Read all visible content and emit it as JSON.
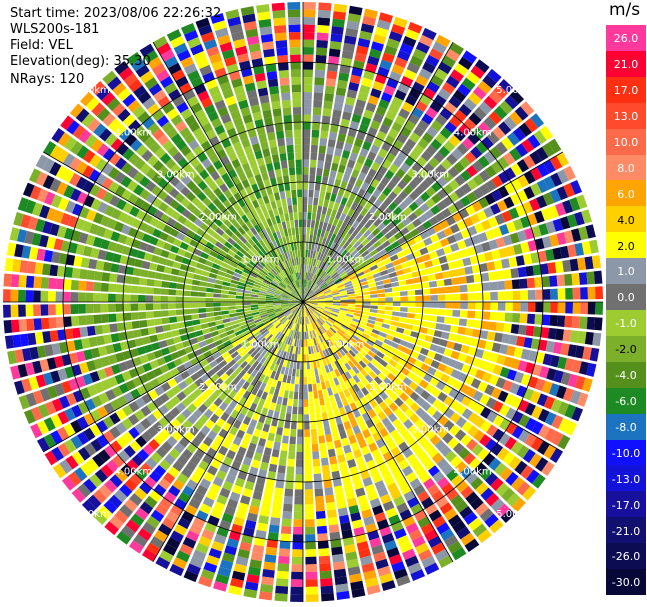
{
  "header": {
    "start_time": "Start time: 2023/08/06 22:26:32",
    "instrument": "WLS200s-181",
    "field": "Field: VEL",
    "elevation": "Elevation(deg): 35.30",
    "nrays": "NRays: 120"
  },
  "colorbar": {
    "unit": "m/s",
    "levels": [
      {
        "label": "26.0",
        "color": "#ff3a9c",
        "text": "#ffffff"
      },
      {
        "label": "21.0",
        "color": "#ff0033",
        "text": "#ffffff"
      },
      {
        "label": "17.0",
        "color": "#ff2f12",
        "text": "#ffffff"
      },
      {
        "label": "13.0",
        "color": "#ff4a2e",
        "text": "#ffffff"
      },
      {
        "label": "10.0",
        "color": "#ff6a4a",
        "text": "#ffffff"
      },
      {
        "label": "8.0",
        "color": "#ff8a66",
        "text": "#ffffff"
      },
      {
        "label": "6.0",
        "color": "#ffa400",
        "text": "#ffffff"
      },
      {
        "label": "4.0",
        "color": "#ffd000",
        "text": "#000000"
      },
      {
        "label": "2.0",
        "color": "#ffff00",
        "text": "#000000"
      },
      {
        "label": "1.0",
        "color": "#8c98a8",
        "text": "#ffffff"
      },
      {
        "label": "0.0",
        "color": "#707070",
        "text": "#ffffff"
      },
      {
        "label": "-1.0",
        "color": "#9ccc32",
        "text": "#ffffff"
      },
      {
        "label": "-2.0",
        "color": "#7cb02a",
        "text": "#000000"
      },
      {
        "label": "-4.0",
        "color": "#56901c",
        "text": "#ffffff"
      },
      {
        "label": "-6.0",
        "color": "#1e8a24",
        "text": "#ffffff"
      },
      {
        "label": "-8.0",
        "color": "#1c74c0",
        "text": "#ffffff"
      },
      {
        "label": "-10.0",
        "color": "#1010ff",
        "text": "#ffffff"
      },
      {
        "label": "-13.0",
        "color": "#1212d8",
        "text": "#ffffff"
      },
      {
        "label": "-17.0",
        "color": "#16109c",
        "text": "#ffffff"
      },
      {
        "label": "-21.0",
        "color": "#101070",
        "text": "#ffffff"
      },
      {
        "label": "-26.0",
        "color": "#0c0c52",
        "text": "#ffffff"
      },
      {
        "label": "-30.0",
        "color": "#080838",
        "text": "#ffffff"
      }
    ]
  },
  "chart_data": {
    "type": "heatmap",
    "plot_kind": "ppi-polar",
    "field": "VEL",
    "units": "m/s",
    "nrays": 120,
    "range_rings_km": [
      1.0,
      2.0,
      3.0,
      4.0,
      5.0
    ],
    "ring_labels": [
      "1.00km",
      "2.00km",
      "3.00km",
      "4.00km",
      "5.00km"
    ],
    "max_range_km": 5.0,
    "azimuth_spokes_deg": [
      0,
      30,
      60,
      90,
      120,
      150,
      180,
      210,
      240,
      270,
      300,
      330
    ],
    "velocity_pattern": {
      "positive_sector_azimuth_deg": [
        60,
        180
      ],
      "negative_sector_azimuth_deg": [
        240,
        360
      ],
      "noise_beyond_km": 3.4
    }
  }
}
